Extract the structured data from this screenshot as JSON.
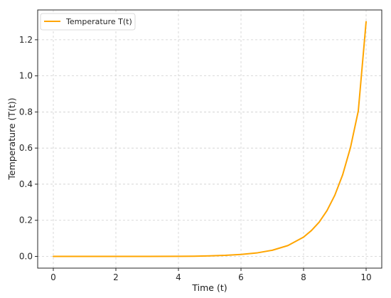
{
  "chart_data": {
    "type": "line",
    "xlabel": "Time (t)",
    "ylabel": "Temperature (T(t))",
    "xlim": [
      -0.5,
      10.5
    ],
    "ylim": [
      -0.065,
      1.365
    ],
    "xticks": [
      0,
      2,
      4,
      6,
      8,
      10
    ],
    "xtick_labels": [
      "0",
      "2",
      "4",
      "6",
      "8",
      "10"
    ],
    "yticks": [
      0.0,
      0.2,
      0.4,
      0.6,
      0.8,
      1.0,
      1.2
    ],
    "ytick_labels": [
      "0.0",
      "0.2",
      "0.4",
      "0.6",
      "0.8",
      "1.0",
      "1.2"
    ],
    "grid": true,
    "legend_position": "top-left",
    "series": [
      {
        "name": "Temperature T(t)",
        "color": "#FFA500",
        "x": [
          0,
          1,
          2,
          3,
          4,
          4.5,
          5,
          5.5,
          6,
          6.5,
          7,
          7.5,
          8,
          8.25,
          8.5,
          8.75,
          9,
          9.25,
          9.5,
          9.75,
          10
        ],
        "y": [
          0.0,
          0.0,
          0.0,
          0.0,
          0.0005,
          0.0012,
          0.003,
          0.006,
          0.011,
          0.019,
          0.034,
          0.06,
          0.107,
          0.143,
          0.19,
          0.254,
          0.339,
          0.452,
          0.603,
          0.806,
          1.3
        ]
      }
    ]
  }
}
